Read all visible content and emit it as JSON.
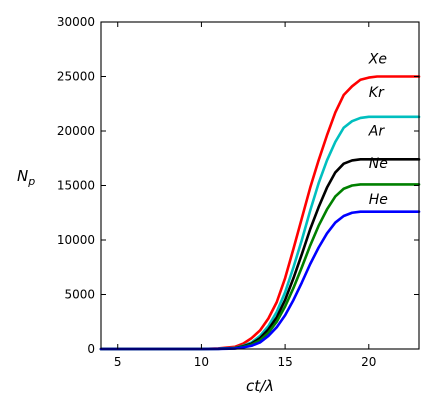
{
  "chart_data": {
    "type": "line",
    "xlabel": "ct/λ",
    "ylabel": "N_p",
    "xlim": [
      4,
      23
    ],
    "ylim": [
      0,
      30000
    ],
    "xticks": [
      5,
      10,
      15,
      20
    ],
    "yticks": [
      0,
      5000,
      10000,
      15000,
      20000,
      25000,
      30000
    ],
    "grid": false,
    "series": [
      {
        "name": "Xe",
        "color": "#ff0000",
        "label_pos": [
          20.0,
          26200
        ],
        "x": [
          4,
          10,
          11,
          12,
          12.5,
          13,
          13.5,
          14,
          14.5,
          15,
          15.5,
          16,
          16.5,
          17,
          17.5,
          18,
          18.5,
          19,
          19.5,
          20,
          20.5,
          21,
          22,
          23
        ],
        "y": [
          0,
          0,
          50,
          200,
          500,
          1000,
          1700,
          2800,
          4300,
          6500,
          9200,
          12000,
          14800,
          17300,
          19600,
          21700,
          23300,
          24100,
          24700,
          24900,
          25000,
          25000,
          25000,
          25000
        ]
      },
      {
        "name": "Kr",
        "color": "#00bfbf",
        "label_pos": [
          20.0,
          23100
        ],
        "x": [
          4,
          10,
          11,
          12,
          12.5,
          13,
          13.5,
          14,
          14.5,
          15,
          15.5,
          16,
          16.5,
          17,
          17.5,
          18,
          18.5,
          19,
          19.5,
          20,
          20.5,
          21,
          22,
          23
        ],
        "y": [
          0,
          0,
          30,
          100,
          300,
          600,
          1200,
          2100,
          3400,
          5200,
          7500,
          10000,
          12700,
          15200,
          17300,
          19000,
          20300,
          20900,
          21200,
          21300,
          21300,
          21300,
          21300,
          21300
        ]
      },
      {
        "name": "Ar",
        "color": "#000000",
        "label_pos": [
          20.0,
          19600
        ],
        "x": [
          4,
          10,
          11,
          12,
          12.5,
          13,
          13.5,
          14,
          14.5,
          15,
          15.5,
          16,
          16.5,
          17,
          17.5,
          18,
          18.5,
          19,
          19.5,
          20,
          20.5,
          21,
          22,
          23
        ],
        "y": [
          0,
          0,
          20,
          80,
          250,
          500,
          1000,
          1800,
          2900,
          4500,
          6500,
          8700,
          11000,
          13000,
          14800,
          16200,
          17000,
          17300,
          17400,
          17400,
          17400,
          17400,
          17400,
          17400
        ]
      },
      {
        "name": "Ne",
        "color": "#008000",
        "label_pos": [
          20.0,
          16600
        ],
        "x": [
          4,
          10,
          11,
          12,
          12.5,
          13,
          13.5,
          14,
          14.5,
          15,
          15.5,
          16,
          16.5,
          17,
          17.5,
          18,
          18.5,
          19,
          19.5,
          20,
          20.5,
          21,
          22,
          23
        ],
        "y": [
          0,
          0,
          15,
          60,
          200,
          400,
          800,
          1500,
          2500,
          3900,
          5600,
          7500,
          9500,
          11300,
          12800,
          14000,
          14700,
          15000,
          15100,
          15100,
          15100,
          15100,
          15100,
          15100
        ]
      },
      {
        "name": "He",
        "color": "#0000ff",
        "label_pos": [
          20.0,
          13300
        ],
        "x": [
          4,
          10,
          11,
          12,
          12.5,
          13,
          13.5,
          14,
          14.5,
          15,
          15.5,
          16,
          16.5,
          17,
          17.5,
          18,
          18.5,
          19,
          19.5,
          20,
          20.5,
          21,
          22,
          23
        ],
        "y": [
          0,
          0,
          10,
          40,
          150,
          300,
          600,
          1200,
          2000,
          3100,
          4500,
          6100,
          7800,
          9300,
          10600,
          11600,
          12200,
          12500,
          12600,
          12600,
          12600,
          12600,
          12600,
          12600
        ]
      }
    ]
  }
}
